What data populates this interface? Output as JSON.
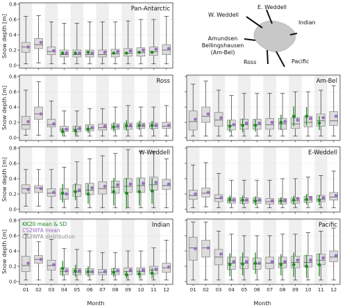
{
  "chart_data": {
    "type": "boxplot",
    "ylabel": "Snow depth [m]",
    "xlabel": "Month",
    "months": [
      "01",
      "02",
      "03",
      "04",
      "05",
      "06",
      "07",
      "08",
      "09",
      "10",
      "11",
      "12"
    ],
    "ylim": [
      0,
      0.8
    ],
    "yticks": [
      "0.0",
      "0.2",
      "0.4",
      "0.6",
      "0.8"
    ],
    "colors": {
      "box": "#dcdcdc",
      "box_edge": "#7f7f7f",
      "mean_purple": "#9b6fc4",
      "kk20_green": "#1e8c1e",
      "stripe": "#efefef"
    },
    "legend": [
      {
        "label": "KK20 mean & SD",
        "color": "#1e8c1e"
      },
      {
        "label": "CS2WFA mean",
        "color": "#9b6fc4"
      },
      {
        "label": "CS2WFA distribution",
        "color": "#8c8c8c"
      }
    ],
    "map_labels": [
      "W. Weddell",
      "E. Weddell",
      "Indian",
      "Amundsen\nBellingshausen\n(Am-Bel)",
      "Ross",
      "Pacific"
    ],
    "panels": [
      {
        "title": "Pan-Antarctic",
        "boxes": [
          [
            0.02,
            0.17,
            0.24,
            0.3,
            0.64
          ],
          [
            0.03,
            0.22,
            0.27,
            0.35,
            0.65
          ],
          [
            0.02,
            0.14,
            0.18,
            0.24,
            0.57
          ],
          [
            0.02,
            0.11,
            0.14,
            0.2,
            0.55
          ],
          [
            0.02,
            0.11,
            0.14,
            0.2,
            0.55
          ],
          [
            0.02,
            0.11,
            0.14,
            0.2,
            0.57
          ],
          [
            0.02,
            0.11,
            0.14,
            0.2,
            0.57
          ],
          [
            0.02,
            0.11,
            0.15,
            0.21,
            0.57
          ],
          [
            0.02,
            0.12,
            0.16,
            0.22,
            0.58
          ],
          [
            0.02,
            0.12,
            0.17,
            0.23,
            0.6
          ],
          [
            0.02,
            0.13,
            0.18,
            0.24,
            0.6
          ],
          [
            0.02,
            0.14,
            0.2,
            0.27,
            0.64
          ]
        ],
        "mean": [
          0.24,
          0.3,
          0.19,
          0.16,
          0.16,
          0.16,
          0.17,
          0.18,
          0.19,
          0.2,
          0.21,
          0.22
        ],
        "kk": [
          null,
          null,
          null,
          {
            "m": 0.16,
            "sd": 0.01
          },
          {
            "m": 0.16,
            "sd": 0.01
          },
          {
            "m": 0.17,
            "sd": 0.01
          },
          null,
          {
            "m": 0.16,
            "sd": 0.01
          },
          {
            "m": 0.16,
            "sd": 0.01
          },
          {
            "m": 0.17,
            "sd": 0.01
          },
          {
            "m": 0.17,
            "sd": 0.01
          },
          null
        ]
      },
      {
        "title": "Ross",
        "boxes": [
          [
            0.03,
            0.11,
            0.17,
            0.28,
            0.62
          ],
          [
            0.03,
            0.24,
            0.31,
            0.4,
            0.73
          ],
          [
            0.02,
            0.14,
            0.17,
            0.24,
            0.48
          ],
          [
            0.02,
            0.08,
            0.11,
            0.15,
            0.35
          ],
          [
            0.02,
            0.08,
            0.11,
            0.15,
            0.35
          ],
          [
            0.02,
            0.09,
            0.12,
            0.17,
            0.38
          ],
          [
            0.02,
            0.1,
            0.13,
            0.18,
            0.38
          ],
          [
            0.02,
            0.11,
            0.14,
            0.18,
            0.4
          ],
          [
            0.02,
            0.11,
            0.14,
            0.19,
            0.42
          ],
          [
            0.02,
            0.12,
            0.15,
            0.19,
            0.4
          ],
          [
            0.02,
            0.12,
            0.15,
            0.19,
            0.4
          ],
          [
            0.02,
            0.12,
            0.15,
            0.2,
            0.42
          ]
        ],
        "mean": [
          0.21,
          0.31,
          0.18,
          0.11,
          0.12,
          0.13,
          0.15,
          0.15,
          0.16,
          0.16,
          0.16,
          0.16
        ],
        "kk": [
          null,
          null,
          null,
          {
            "m": 0.08,
            "sd": 0.05
          },
          {
            "m": 0.09,
            "sd": 0.06
          },
          {
            "m": 0.11,
            "sd": 0.05
          },
          null,
          {
            "m": 0.14,
            "sd": 0.06
          },
          {
            "m": 0.16,
            "sd": 0.07
          },
          {
            "m": 0.16,
            "sd": 0.06
          },
          {
            "m": 0.16,
            "sd": 0.06
          },
          null
        ]
      },
      {
        "title": "Am-Bel",
        "boxes": [
          [
            0.02,
            0.1,
            0.21,
            0.35,
            0.7
          ],
          [
            0.02,
            0.2,
            0.28,
            0.4,
            0.74
          ],
          [
            0.02,
            0.15,
            0.23,
            0.33,
            0.62
          ],
          [
            0.02,
            0.1,
            0.16,
            0.23,
            0.55
          ],
          [
            0.02,
            0.11,
            0.17,
            0.24,
            0.58
          ],
          [
            0.02,
            0.11,
            0.17,
            0.24,
            0.58
          ],
          [
            0.02,
            0.11,
            0.17,
            0.25,
            0.58
          ],
          [
            0.02,
            0.11,
            0.18,
            0.25,
            0.58
          ],
          [
            0.02,
            0.12,
            0.18,
            0.26,
            0.6
          ],
          [
            0.02,
            0.14,
            0.2,
            0.28,
            0.6
          ],
          [
            0.02,
            0.15,
            0.22,
            0.31,
            0.62
          ],
          [
            0.02,
            0.16,
            0.22,
            0.34,
            0.68
          ]
        ],
        "mean": [
          0.24,
          0.31,
          0.26,
          0.17,
          0.19,
          0.19,
          0.2,
          0.21,
          0.23,
          0.25,
          0.26,
          0.28
        ],
        "kk": [
          null,
          null,
          null,
          {
            "m": 0.15,
            "sd": 0.08
          },
          {
            "m": 0.16,
            "sd": 0.09
          },
          {
            "m": 0.16,
            "sd": 0.08
          },
          null,
          {
            "m": 0.2,
            "sd": 0.1
          },
          {
            "m": 0.28,
            "sd": 0.13
          },
          {
            "m": 0.28,
            "sd": 0.12
          },
          {
            "m": 0.19,
            "sd": 0.09
          },
          null
        ]
      },
      {
        "title": "W-Weddell",
        "boxes": [
          [
            0.04,
            0.21,
            0.27,
            0.32,
            0.52
          ],
          [
            0.04,
            0.22,
            0.28,
            0.31,
            0.52
          ],
          [
            0.02,
            0.17,
            0.21,
            0.27,
            0.52
          ],
          [
            0.02,
            0.13,
            0.2,
            0.27,
            0.55
          ],
          [
            0.02,
            0.17,
            0.23,
            0.32,
            0.62
          ],
          [
            0.02,
            0.19,
            0.25,
            0.34,
            0.66
          ],
          [
            0.02,
            0.2,
            0.27,
            0.36,
            0.7
          ],
          [
            0.02,
            0.21,
            0.29,
            0.37,
            0.73
          ],
          [
            0.02,
            0.22,
            0.3,
            0.4,
            0.78
          ],
          [
            0.02,
            0.22,
            0.31,
            0.41,
            0.76
          ],
          [
            0.02,
            0.25,
            0.32,
            0.42,
            0.76
          ],
          [
            0.02,
            0.26,
            0.31,
            0.39,
            0.66
          ]
        ],
        "mean": [
          0.26,
          0.27,
          0.22,
          0.2,
          0.25,
          0.28,
          0.3,
          0.32,
          0.33,
          0.34,
          0.35,
          0.33
        ],
        "kk": [
          null,
          null,
          null,
          {
            "m": 0.21,
            "sd": 0.12
          },
          {
            "m": 0.23,
            "sd": 0.11
          },
          {
            "m": 0.2,
            "sd": 0.13
          },
          null,
          {
            "m": 0.23,
            "sd": 0.18
          },
          {
            "m": 0.21,
            "sd": 0.2
          },
          {
            "m": 0.23,
            "sd": 0.18
          },
          {
            "m": 0.24,
            "sd": 0.17
          },
          null
        ]
      },
      {
        "title": "E-Weddell",
        "boxes": [
          [
            0.02,
            0.13,
            0.18,
            0.25,
            0.58
          ],
          [
            0.03,
            0.16,
            0.21,
            0.28,
            0.61
          ],
          [
            0.02,
            0.1,
            0.14,
            0.19,
            0.47
          ],
          [
            0.02,
            0.08,
            0.11,
            0.15,
            0.38
          ],
          [
            0.02,
            0.08,
            0.11,
            0.15,
            0.38
          ],
          [
            0.02,
            0.08,
            0.11,
            0.15,
            0.38
          ],
          [
            0.02,
            0.07,
            0.1,
            0.14,
            0.38
          ],
          [
            0.02,
            0.07,
            0.1,
            0.14,
            0.4
          ],
          [
            0.02,
            0.08,
            0.11,
            0.15,
            0.4
          ],
          [
            0.02,
            0.09,
            0.12,
            0.17,
            0.42
          ],
          [
            0.02,
            0.1,
            0.13,
            0.18,
            0.44
          ],
          [
            0.02,
            0.12,
            0.16,
            0.22,
            0.5
          ]
        ],
        "mean": [
          0.2,
          0.22,
          0.15,
          0.12,
          0.12,
          0.12,
          0.11,
          0.12,
          0.14,
          0.15,
          0.15,
          0.18
        ],
        "kk": [
          null,
          null,
          null,
          {
            "m": 0.13,
            "sd": 0.05
          },
          {
            "m": 0.12,
            "sd": 0.06
          },
          {
            "m": 0.11,
            "sd": 0.06
          },
          null,
          {
            "m": 0.11,
            "sd": 0.05
          },
          {
            "m": 0.12,
            "sd": 0.06
          },
          {
            "m": 0.13,
            "sd": 0.07
          },
          {
            "m": 0.12,
            "sd": 0.07
          },
          null
        ]
      },
      {
        "title": "Indian",
        "boxes": [
          [
            0.02,
            0.13,
            0.21,
            0.33,
            0.62
          ],
          [
            0.02,
            0.24,
            0.29,
            0.34,
            0.52
          ],
          [
            0.02,
            0.15,
            0.21,
            0.28,
            0.55
          ],
          [
            0.02,
            0.09,
            0.13,
            0.18,
            0.43
          ],
          [
            0.02,
            0.09,
            0.12,
            0.17,
            0.42
          ],
          [
            0.02,
            0.09,
            0.12,
            0.17,
            0.4
          ],
          [
            0.02,
            0.09,
            0.12,
            0.16,
            0.38
          ],
          [
            0.02,
            0.09,
            0.13,
            0.17,
            0.38
          ],
          [
            0.02,
            0.09,
            0.13,
            0.18,
            0.4
          ],
          [
            0.02,
            0.09,
            0.13,
            0.18,
            0.4
          ],
          [
            0.02,
            0.1,
            0.15,
            0.2,
            0.44
          ],
          [
            0.02,
            0.12,
            0.18,
            0.24,
            0.54
          ]
        ],
        "mean": [
          0.24,
          0.29,
          0.22,
          0.14,
          0.14,
          0.13,
          0.13,
          0.14,
          0.15,
          0.15,
          0.16,
          0.19
        ],
        "kk": [
          null,
          null,
          null,
          {
            "m": 0.17,
            "sd": 0.1
          },
          {
            "m": 0.14,
            "sd": 0.08
          },
          {
            "m": 0.13,
            "sd": 0.07
          },
          null,
          {
            "m": 0.12,
            "sd": 0.06
          },
          {
            "m": 0.09,
            "sd": 0.05
          },
          {
            "m": 0.1,
            "sd": 0.06
          },
          {
            "m": 0.11,
            "sd": 0.07
          },
          null
        ]
      },
      {
        "title": "Pacific",
        "boxes": [
          [
            0.02,
            0.28,
            0.44,
            0.58,
            0.78
          ],
          [
            0.02,
            0.32,
            0.44,
            0.54,
            0.78
          ],
          [
            0.02,
            0.22,
            0.32,
            0.42,
            0.66
          ],
          [
            0.02,
            0.16,
            0.24,
            0.32,
            0.62
          ],
          [
            0.02,
            0.17,
            0.24,
            0.32,
            0.6
          ],
          [
            0.02,
            0.16,
            0.23,
            0.31,
            0.6
          ],
          [
            0.02,
            0.17,
            0.24,
            0.32,
            0.6
          ],
          [
            0.02,
            0.18,
            0.24,
            0.32,
            0.62
          ],
          [
            0.02,
            0.18,
            0.25,
            0.33,
            0.62
          ],
          [
            0.02,
            0.19,
            0.25,
            0.34,
            0.64
          ],
          [
            0.02,
            0.22,
            0.28,
            0.36,
            0.66
          ],
          [
            0.02,
            0.26,
            0.32,
            0.4,
            0.7
          ]
        ],
        "mean": [
          0.43,
          0.44,
          0.36,
          0.26,
          0.26,
          0.24,
          0.26,
          0.26,
          0.28,
          0.28,
          0.31,
          0.34
        ],
        "kk": [
          null,
          null,
          null,
          {
            "m": 0.22,
            "sd": 0.15
          },
          {
            "m": 0.23,
            "sd": 0.15
          },
          {
            "m": 0.24,
            "sd": 0.14
          },
          null,
          {
            "m": 0.22,
            "sd": 0.14
          },
          {
            "m": 0.22,
            "sd": 0.16
          },
          {
            "m": 0.2,
            "sd": 0.15
          },
          {
            "m": 0.22,
            "sd": 0.15
          },
          null
        ]
      }
    ]
  }
}
